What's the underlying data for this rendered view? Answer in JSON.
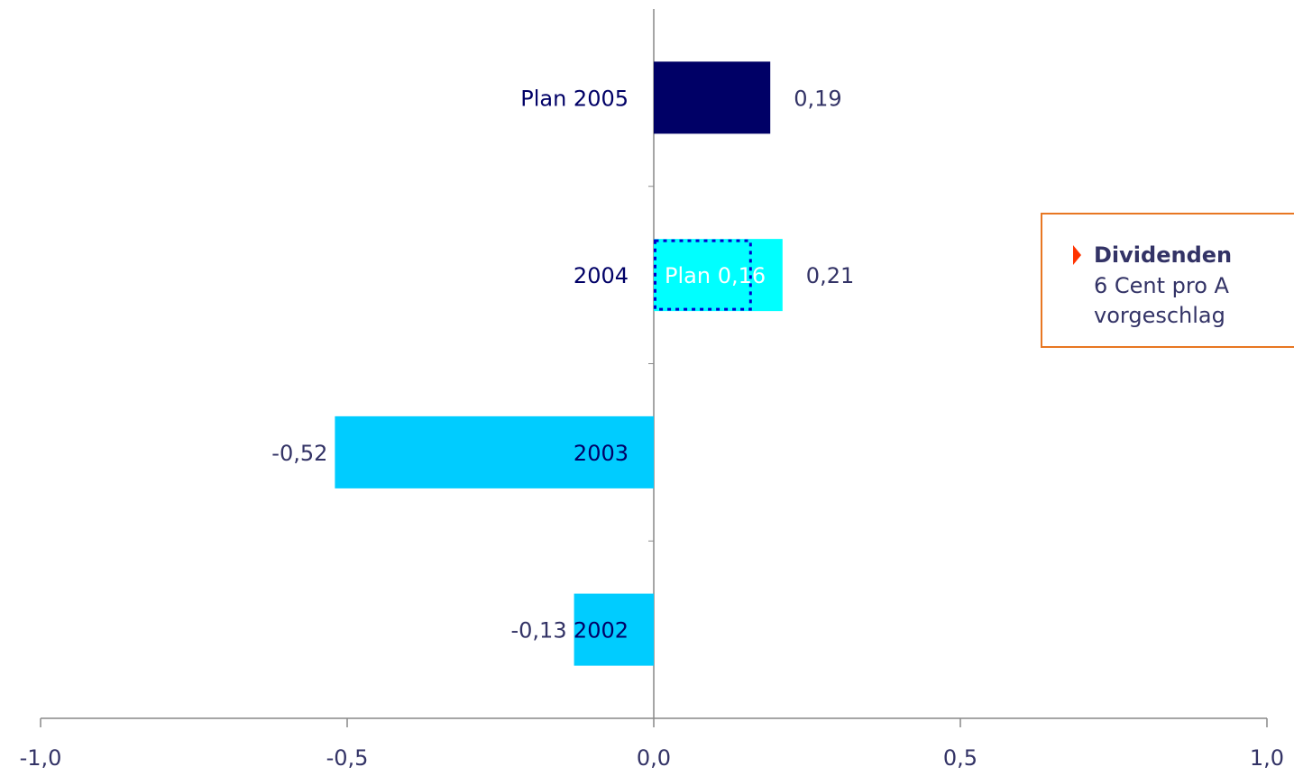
{
  "chart_data": {
    "type": "bar",
    "orientation": "horizontal",
    "categories": [
      "Plan 2005",
      "2004",
      "2003",
      "2002"
    ],
    "values": [
      0.19,
      0.21,
      -0.52,
      -0.13
    ],
    "value_labels": [
      "0,19",
      "0,21",
      "-0,52",
      "-0,13"
    ],
    "colors": [
      "#000066",
      "#00ffff",
      "#00ccff",
      "#00ccff"
    ],
    "plan_values": [
      null,
      0.16,
      null,
      null
    ],
    "plan_labels": [
      null,
      "Plan 0,16",
      null,
      null
    ],
    "xlim": [
      -1,
      1
    ],
    "xticks": [
      {
        "value": -1,
        "label": "-1,0"
      },
      {
        "value": -0.5,
        "label": "-0,5"
      },
      {
        "value": 0,
        "label": "0,0"
      },
      {
        "value": 0.5,
        "label": "0,5"
      },
      {
        "value": 1,
        "label": "1,0"
      }
    ]
  },
  "callout": {
    "title": "Dividenden",
    "lines": [
      "6 Cent pro A",
      "vorgeschlag"
    ]
  }
}
